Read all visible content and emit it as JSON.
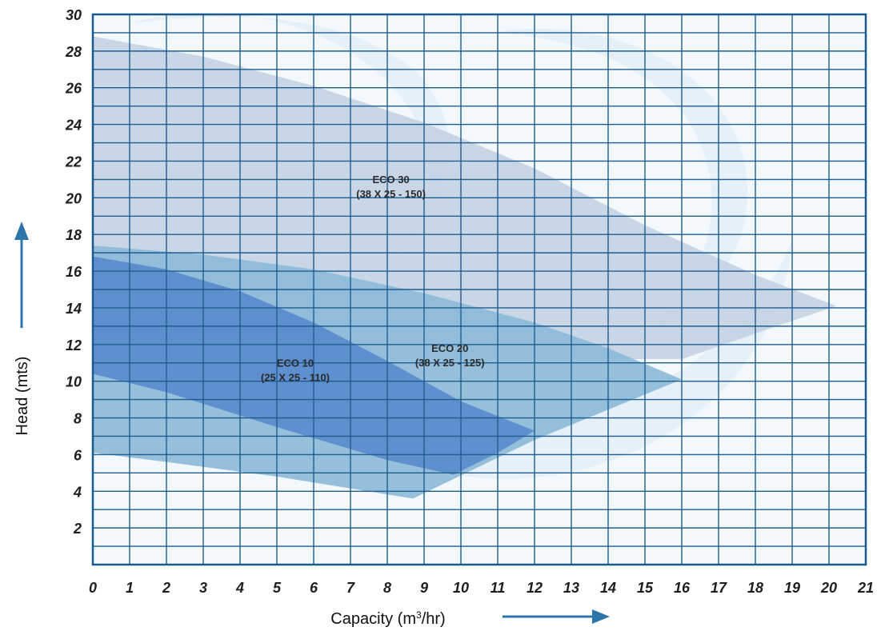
{
  "chart_data": {
    "type": "area",
    "title": "",
    "xlabel": "Capacity (m³/hr)",
    "ylabel": "Head  (mts)",
    "xlim": [
      0,
      21
    ],
    "ylim": [
      0,
      30
    ],
    "x_ticks": [
      0,
      1,
      2,
      3,
      4,
      5,
      6,
      7,
      8,
      9,
      10,
      11,
      12,
      13,
      14,
      15,
      16,
      17,
      18,
      19,
      20,
      21
    ],
    "y_ticks": [
      2,
      4,
      6,
      8,
      10,
      12,
      14,
      16,
      18,
      20,
      22,
      24,
      26,
      28,
      30
    ],
    "grid": true,
    "x_minor_step": 1,
    "y_minor_step": 1,
    "series": [
      {
        "name": "ECO 30",
        "label_lines": [
          "ECO 30",
          "(38 X 25 - 150)"
        ],
        "color": "#c5d4e5",
        "polygon": [
          [
            0,
            28.8
          ],
          [
            3,
            27.7
          ],
          [
            6,
            26.1
          ],
          [
            9,
            24.1
          ],
          [
            12,
            21.6
          ],
          [
            15,
            18.5
          ],
          [
            18,
            15.8
          ],
          [
            20.2,
            14.1
          ],
          [
            18,
            12.6
          ],
          [
            16,
            11.2
          ],
          [
            0,
            11.2
          ]
        ]
      },
      {
        "name": "ECO 20",
        "label_lines": [
          "ECO 20",
          "(38 X 25 - 125)"
        ],
        "color": "#8fbcd9",
        "polygon": [
          [
            0,
            17.4
          ],
          [
            3,
            16.9
          ],
          [
            6,
            16.1
          ],
          [
            9,
            14.8
          ],
          [
            12,
            13.2
          ],
          [
            14,
            11.8
          ],
          [
            16,
            10.1
          ],
          [
            12,
            6.8
          ],
          [
            8.7,
            3.6
          ],
          [
            5,
            4.8
          ],
          [
            2,
            5.6
          ],
          [
            0,
            6.1
          ]
        ]
      },
      {
        "name": "ECO 10",
        "label_lines": [
          "ECO 10",
          "(25 X 25 - 110)"
        ],
        "color": "#5b8cce",
        "polygon": [
          [
            0,
            16.8
          ],
          [
            2,
            16.1
          ],
          [
            4,
            14.9
          ],
          [
            6,
            13.2
          ],
          [
            8,
            11.1
          ],
          [
            10,
            8.9
          ],
          [
            12,
            7.3
          ],
          [
            11,
            6.1
          ],
          [
            9.8,
            4.9
          ],
          [
            8,
            5.7
          ],
          [
            5,
            7.5
          ],
          [
            2,
            9.4
          ],
          [
            0,
            10.4
          ]
        ]
      }
    ]
  },
  "colors": {
    "grid_line": "#1f5d8f",
    "frame": "#1a5a8a",
    "arrow": "#2d74a8",
    "watermark": "#e4eef7"
  },
  "icons": [
    "up-arrow-icon",
    "right-arrow-icon"
  ]
}
